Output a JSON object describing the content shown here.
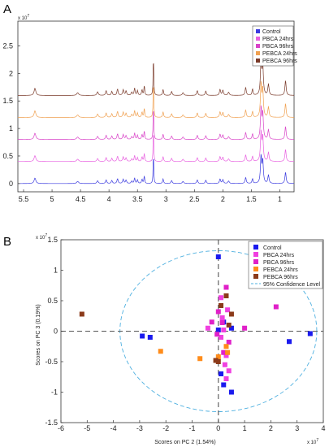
{
  "chart_data": [
    {
      "panel": "A",
      "type": "line",
      "title": "",
      "xlabel": "",
      "ylabel": "",
      "y_multiplier": "x 10^7",
      "xlim": [
        5.6,
        0.75
      ],
      "x_reversed": true,
      "ylim": [
        -0.15,
        2.95
      ],
      "xticks": [
        "5.5",
        "5",
        "4.5",
        "4",
        "3.5",
        "3",
        "2.5",
        "2",
        "1.5",
        "1"
      ],
      "xtick_values": [
        5.5,
        5,
        4.5,
        4,
        3.5,
        3,
        2.5,
        2,
        1.5,
        1
      ],
      "yticks": [
        "0",
        "0.5",
        "1",
        "1.5",
        "2",
        "2.5"
      ],
      "ytick_values": [
        0,
        0.5,
        1,
        1.5,
        2,
        2.5
      ],
      "legend_position": "top-right",
      "series": [
        {
          "name": "Control",
          "color": "#3a3adf",
          "baseline": 0.0
        },
        {
          "name": "PBCA 24hrs",
          "color": "#e860e0",
          "baseline": 0.4
        },
        {
          "name": "PBCA 96hrs",
          "color": "#d943c8",
          "baseline": 0.8
        },
        {
          "name": "PEBCA 24hrs",
          "color": "#f0a050",
          "baseline": 1.2
        },
        {
          "name": "PEBCA 96hrs",
          "color": "#7a3a2a",
          "baseline": 1.6
        }
      ],
      "peaks": [
        {
          "x": 5.3,
          "h": 0.18,
          "w": 0.018
        },
        {
          "x": 4.55,
          "h": 0.07,
          "w": 0.02
        },
        {
          "x": 4.2,
          "h": 0.09,
          "w": 0.015
        },
        {
          "x": 4.05,
          "h": 0.12,
          "w": 0.012
        },
        {
          "x": 3.95,
          "h": 0.1,
          "w": 0.012
        },
        {
          "x": 3.85,
          "h": 0.16,
          "w": 0.012
        },
        {
          "x": 3.75,
          "h": 0.14,
          "w": 0.012
        },
        {
          "x": 3.7,
          "h": 0.11,
          "w": 0.012
        },
        {
          "x": 3.6,
          "h": 0.08,
          "w": 0.012
        },
        {
          "x": 3.55,
          "h": 0.18,
          "w": 0.01
        },
        {
          "x": 3.5,
          "h": 0.12,
          "w": 0.01
        },
        {
          "x": 3.42,
          "h": 0.14,
          "w": 0.01
        },
        {
          "x": 3.38,
          "h": 0.25,
          "w": 0.008
        },
        {
          "x": 3.22,
          "h": 1.05,
          "w": 0.006
        },
        {
          "x": 3.05,
          "h": 0.15,
          "w": 0.01
        },
        {
          "x": 2.9,
          "h": 0.1,
          "w": 0.012
        },
        {
          "x": 2.7,
          "h": 0.07,
          "w": 0.015
        },
        {
          "x": 2.45,
          "h": 0.12,
          "w": 0.012
        },
        {
          "x": 2.3,
          "h": 0.11,
          "w": 0.012
        },
        {
          "x": 2.05,
          "h": 0.15,
          "w": 0.012
        },
        {
          "x": 2.0,
          "h": 0.13,
          "w": 0.012
        },
        {
          "x": 1.9,
          "h": 0.08,
          "w": 0.015
        },
        {
          "x": 1.6,
          "h": 0.2,
          "w": 0.012
        },
        {
          "x": 1.48,
          "h": 0.16,
          "w": 0.01
        },
        {
          "x": 1.33,
          "h": 0.9,
          "w": 0.012
        },
        {
          "x": 1.3,
          "h": 0.75,
          "w": 0.012
        },
        {
          "x": 1.2,
          "h": 0.28,
          "w": 0.012
        },
        {
          "x": 0.9,
          "h": 0.38,
          "w": 0.012
        }
      ]
    },
    {
      "panel": "B",
      "type": "scatter",
      "title": "",
      "xlabel": "Scores on PC 2 (1.54%)",
      "ylabel": "Scores on PC 3 (0.19%)",
      "x_multiplier": "x 10^7",
      "y_multiplier": "x 10^7",
      "xlim": [
        -6,
        4
      ],
      "ylim": [
        -1.5,
        1.5
      ],
      "xticks": [
        "-6",
        "-5",
        "-4",
        "-3",
        "-2",
        "-1",
        "0",
        "1",
        "2",
        "3",
        "4"
      ],
      "xtick_values": [
        -6,
        -5,
        -4,
        -3,
        -2,
        -1,
        0,
        1,
        2,
        3,
        4
      ],
      "yticks": [
        "-1.5",
        "-1",
        "-0.5",
        "0",
        "0.5",
        "1",
        "1.5"
      ],
      "ytick_values": [
        -1.5,
        -1,
        -0.5,
        0,
        0.5,
        1,
        1.5
      ],
      "legend_position": "top-right",
      "confidence_ellipse": {
        "label": "95% Confidence Level",
        "center": [
          0,
          0
        ],
        "rx": 3.75,
        "ry": 1.32,
        "color": "#4fb0e0"
      },
      "series": [
        {
          "name": "Control",
          "color": "#1a1aee",
          "points": [
            [
              0,
              1.22
            ],
            [
              -2.9,
              -0.08
            ],
            [
              -2.6,
              -0.1
            ],
            [
              0.2,
              0.15
            ],
            [
              0.5,
              0.05
            ],
            [
              2.7,
              -0.17
            ],
            [
              3.5,
              -0.04
            ],
            [
              0.1,
              -0.7
            ],
            [
              0.2,
              -0.88
            ],
            [
              0.5,
              -1.0
            ],
            [
              0,
              0.02
            ]
          ]
        },
        {
          "name": "PBCA 24hrs",
          "color": "#f040e0",
          "points": [
            [
              0.1,
              0.55
            ],
            [
              0.35,
              0.35
            ],
            [
              0.15,
              0.22
            ],
            [
              0.3,
              -0.4
            ],
            [
              0.25,
              -0.55
            ],
            [
              0.4,
              -0.65
            ],
            [
              0.1,
              -0.1
            ],
            [
              0.2,
              0.02
            ],
            [
              -0.4,
              0.05
            ],
            [
              0.3,
              -0.78
            ]
          ]
        },
        {
          "name": "PBCA 96hrs",
          "color": "#e020c8",
          "points": [
            [
              0.3,
              0.72
            ],
            [
              0,
              0.32
            ],
            [
              0.15,
              0.14
            ],
            [
              -0.05,
              -0.05
            ],
            [
              2.2,
              0.4
            ],
            [
              1,
              0.05
            ],
            [
              0.4,
              -0.18
            ],
            [
              -0.25,
              0.15
            ],
            [
              0.2,
              -0.35
            ]
          ]
        },
        {
          "name": "PEBCA 24hrs",
          "color": "#ff8c1a",
          "points": [
            [
              -2.2,
              -0.33
            ],
            [
              -0.7,
              -0.45
            ],
            [
              0.3,
              -0.25
            ],
            [
              0.35,
              -0.35
            ],
            [
              0,
              -0.42
            ]
          ]
        },
        {
          "name": "PEBCA 96hrs",
          "color": "#8b3a1a",
          "points": [
            [
              -5.2,
              0.28
            ],
            [
              0.5,
              0.28
            ],
            [
              0.3,
              0.58
            ],
            [
              0.1,
              0.42
            ],
            [
              0.4,
              0.1
            ],
            [
              -0.1,
              -0.48
            ],
            [
              0,
              -0.5
            ]
          ]
        }
      ]
    }
  ],
  "panels": {
    "a_letter": "A",
    "b_letter": "B",
    "a_exp": "x 10",
    "a_exp_sup": "7",
    "b_exp_y": "x 10",
    "b_exp_y_sup": "7",
    "b_exp_x": "x 10",
    "b_exp_x_sup": "7"
  }
}
